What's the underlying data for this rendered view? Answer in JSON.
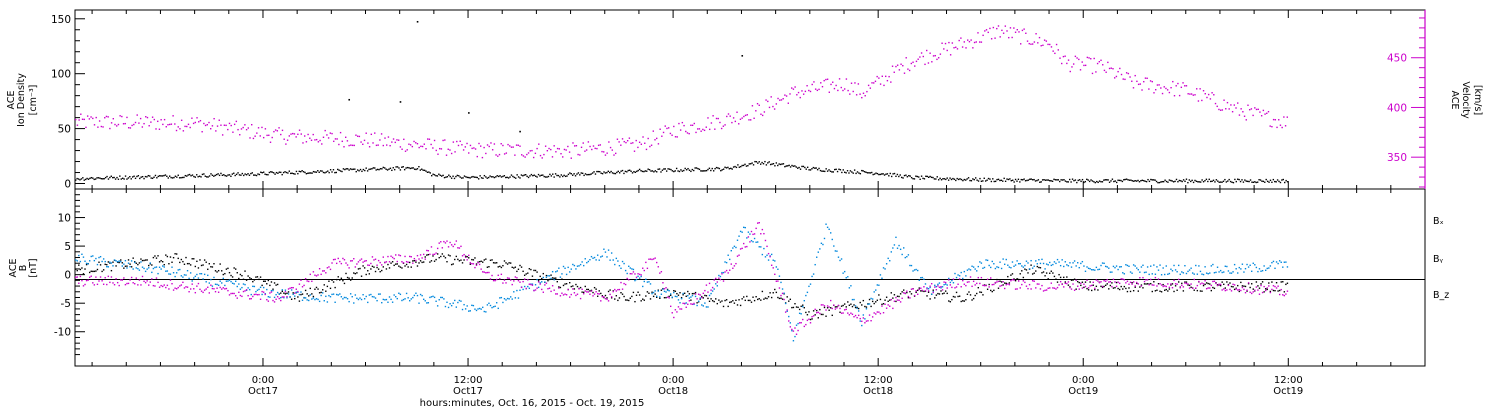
{
  "chart_data": [
    {
      "type": "scatter",
      "xlabel": "hours:minutes, Oct. 16, 2015 - Oct. 19, 2015",
      "xlim": [
        "2015-10-16T13:00",
        "2015-10-19T20:00"
      ],
      "x_ticks": [
        {
          "time": "00:00",
          "label": "0:00",
          "day": "Oct17"
        },
        {
          "time": "12:00",
          "label": "12:00",
          "day": "Oct17"
        },
        {
          "time": "00:00",
          "label": "0:00",
          "day": "Oct18"
        },
        {
          "time": "12:00",
          "label": "12:00",
          "day": "Oct18"
        },
        {
          "time": "00:00",
          "label": "0:00",
          "day": "Oct19"
        },
        {
          "time": "12:00",
          "label": "12:00",
          "day": "Oct19"
        }
      ],
      "ylabel_left": [
        "ACE",
        "Ion Density",
        "[cm⁻³]"
      ],
      "ylim_left": [
        -5,
        158
      ],
      "yticks_left": [
        "0",
        "50",
        "100",
        "150"
      ],
      "ylabel_right": [
        "ACE",
        "Velocity",
        "[km/s]"
      ],
      "ylim_right": [
        318,
        498
      ],
      "yticks_right": [
        "350",
        "400",
        "450"
      ],
      "series": [
        {
          "axis": "left",
          "color": "#000000",
          "points": [
            [
              "2015-10-16T13:00",
              5
            ],
            [
              "2015-10-16T18:00",
              7
            ],
            [
              "2015-10-16T23:00",
              9
            ],
            [
              "2015-10-17T04:00",
              12
            ],
            [
              "2015-10-17T09:00",
              15
            ],
            [
              "2015-10-17T10:00",
              8
            ],
            [
              "2015-10-17T12:00",
              6
            ],
            [
              "2015-10-17T17:00",
              8
            ],
            [
              "2015-10-17T22:00",
              12
            ],
            [
              "2015-10-18T03:00",
              14
            ],
            [
              "2015-10-18T05:00",
              20
            ],
            [
              "2015-10-18T08:00",
              14
            ],
            [
              "2015-10-18T12:00",
              10
            ],
            [
              "2015-10-18T14:00",
              6
            ],
            [
              "2015-10-18T18:00",
              4
            ],
            [
              "2015-10-18T23:00",
              3
            ],
            [
              "2015-10-19T06:00",
              3
            ],
            [
              "2015-10-19T12:00",
              3
            ]
          ],
          "outliers": [
            [
              "2015-10-17T09:00",
              148
            ],
            [
              "2015-10-18T04:00",
              117
            ],
            [
              "2015-10-17T05:00",
              77
            ],
            [
              "2015-10-17T08:00",
              75
            ],
            [
              "2015-10-17T12:00",
              65
            ],
            [
              "2015-10-17T15:00",
              48
            ]
          ]
        },
        {
          "axis": "right",
          "color": "#cc00cc",
          "points": [
            [
              "2015-10-16T13:00",
              386
            ],
            [
              "2015-10-16T20:00",
              385
            ],
            [
              "2015-10-17T01:00",
              372
            ],
            [
              "2015-10-17T06:00",
              368
            ],
            [
              "2015-10-17T12:00",
              358
            ],
            [
              "2015-10-17T18:00",
              357
            ],
            [
              "2015-10-17T22:00",
              363
            ],
            [
              "2015-10-18T00:00",
              378
            ],
            [
              "2015-10-18T03:00",
              388
            ],
            [
              "2015-10-18T05:00",
              398
            ],
            [
              "2015-10-18T07:00",
              415
            ],
            [
              "2015-10-18T10:00",
              425
            ],
            [
              "2015-10-18T11:00",
              415
            ],
            [
              "2015-10-18T14:00",
              448
            ],
            [
              "2015-10-18T17:00",
              465
            ],
            [
              "2015-10-18T19:00",
              478
            ],
            [
              "2015-10-18T22:00",
              465
            ],
            [
              "2015-10-18T23:00",
              445
            ],
            [
              "2015-10-19T01:00",
              442
            ],
            [
              "2015-10-19T03:00",
              425
            ],
            [
              "2015-10-19T06:00",
              418
            ],
            [
              "2015-10-19T09:00",
              398
            ],
            [
              "2015-10-19T12:00",
              385
            ]
          ]
        }
      ]
    },
    {
      "type": "scatter",
      "ylabel": [
        "ACE",
        "B",
        "[nT]"
      ],
      "ylim": [
        -16,
        15
      ],
      "yticks": [
        "-10",
        "-5",
        "0",
        "5",
        "10"
      ],
      "zero_line": true,
      "legend_position": "right",
      "series": [
        {
          "name": "Bₓ",
          "color": "#000000",
          "points": [
            [
              "2015-10-16T13:00",
              1
            ],
            [
              "2015-10-16T19:00",
              3
            ],
            [
              "2015-10-16T23:00",
              0
            ],
            [
              "2015-10-17T02:00",
              -4
            ],
            [
              "2015-10-17T06:00",
              1
            ],
            [
              "2015-10-17T10:00",
              3
            ],
            [
              "2015-10-17T14:00",
              2
            ],
            [
              "2015-10-17T17:00",
              -1
            ],
            [
              "2015-10-17T21:00",
              -4
            ],
            [
              "2015-10-18T00:00",
              -3
            ],
            [
              "2015-10-18T03:00",
              -5
            ],
            [
              "2015-10-18T06:00",
              -3
            ],
            [
              "2015-10-18T08:00",
              -7
            ],
            [
              "2015-10-18T11:00",
              -5
            ],
            [
              "2015-10-18T14:00",
              -3
            ],
            [
              "2015-10-18T17:00",
              -4
            ],
            [
              "2015-10-18T21:00",
              1
            ],
            [
              "2015-10-19T00:00",
              -2
            ],
            [
              "2015-10-19T06:00",
              -2
            ],
            [
              "2015-10-19T12:00",
              -2
            ]
          ]
        },
        {
          "name": "Bᵧ",
          "color": "#0088dd",
          "points": [
            [
              "2015-10-16T13:00",
              3
            ],
            [
              "2015-10-16T18:00",
              1
            ],
            [
              "2015-10-17T00:00",
              -3
            ],
            [
              "2015-10-17T04:00",
              -4
            ],
            [
              "2015-10-17T09:00",
              -4
            ],
            [
              "2015-10-17T13:00",
              -6
            ],
            [
              "2015-10-17T17:00",
              0
            ],
            [
              "2015-10-17T20:00",
              4
            ],
            [
              "2015-10-17T23:00",
              -3
            ],
            [
              "2015-10-18T02:00",
              -5
            ],
            [
              "2015-10-18T04:00",
              8
            ],
            [
              "2015-10-18T06:00",
              2
            ],
            [
              "2015-10-18T07:00",
              -11
            ],
            [
              "2015-10-18T09:00",
              9
            ],
            [
              "2015-10-18T11:00",
              -8
            ],
            [
              "2015-10-18T13:00",
              6
            ],
            [
              "2015-10-18T15:00",
              -3
            ],
            [
              "2015-10-18T18:00",
              2
            ],
            [
              "2015-10-18T22:00",
              2
            ],
            [
              "2015-10-19T03:00",
              1
            ],
            [
              "2015-10-19T09:00",
              1
            ],
            [
              "2015-10-19T12:00",
              2
            ]
          ]
        },
        {
          "name": "B_z",
          "color": "#cc00cc",
          "points": [
            [
              "2015-10-16T13:00",
              -1
            ],
            [
              "2015-10-16T17:00",
              -1
            ],
            [
              "2015-10-16T22:00",
              -3
            ],
            [
              "2015-10-17T01:00",
              -4
            ],
            [
              "2015-10-17T04:00",
              2
            ],
            [
              "2015-10-17T09:00",
              3
            ],
            [
              "2015-10-17T11:00",
              6
            ],
            [
              "2015-10-17T13:00",
              0
            ],
            [
              "2015-10-17T16:00",
              -2
            ],
            [
              "2015-10-17T20:00",
              -4
            ],
            [
              "2015-10-17T23:00",
              3
            ],
            [
              "2015-10-18T00:00",
              -7
            ],
            [
              "2015-10-18T03:00",
              0
            ],
            [
              "2015-10-18T05:00",
              9
            ],
            [
              "2015-10-18T07:00",
              -10
            ],
            [
              "2015-10-18T09:00",
              -5
            ],
            [
              "2015-10-18T11:00",
              -8
            ],
            [
              "2015-10-18T14:00",
              -3
            ],
            [
              "2015-10-18T17:00",
              -1
            ],
            [
              "2015-10-18T22:00",
              -2
            ],
            [
              "2015-10-19T03:00",
              -1
            ],
            [
              "2015-10-19T09:00",
              -2
            ],
            [
              "2015-10-19T12:00",
              -3
            ]
          ]
        }
      ]
    }
  ]
}
